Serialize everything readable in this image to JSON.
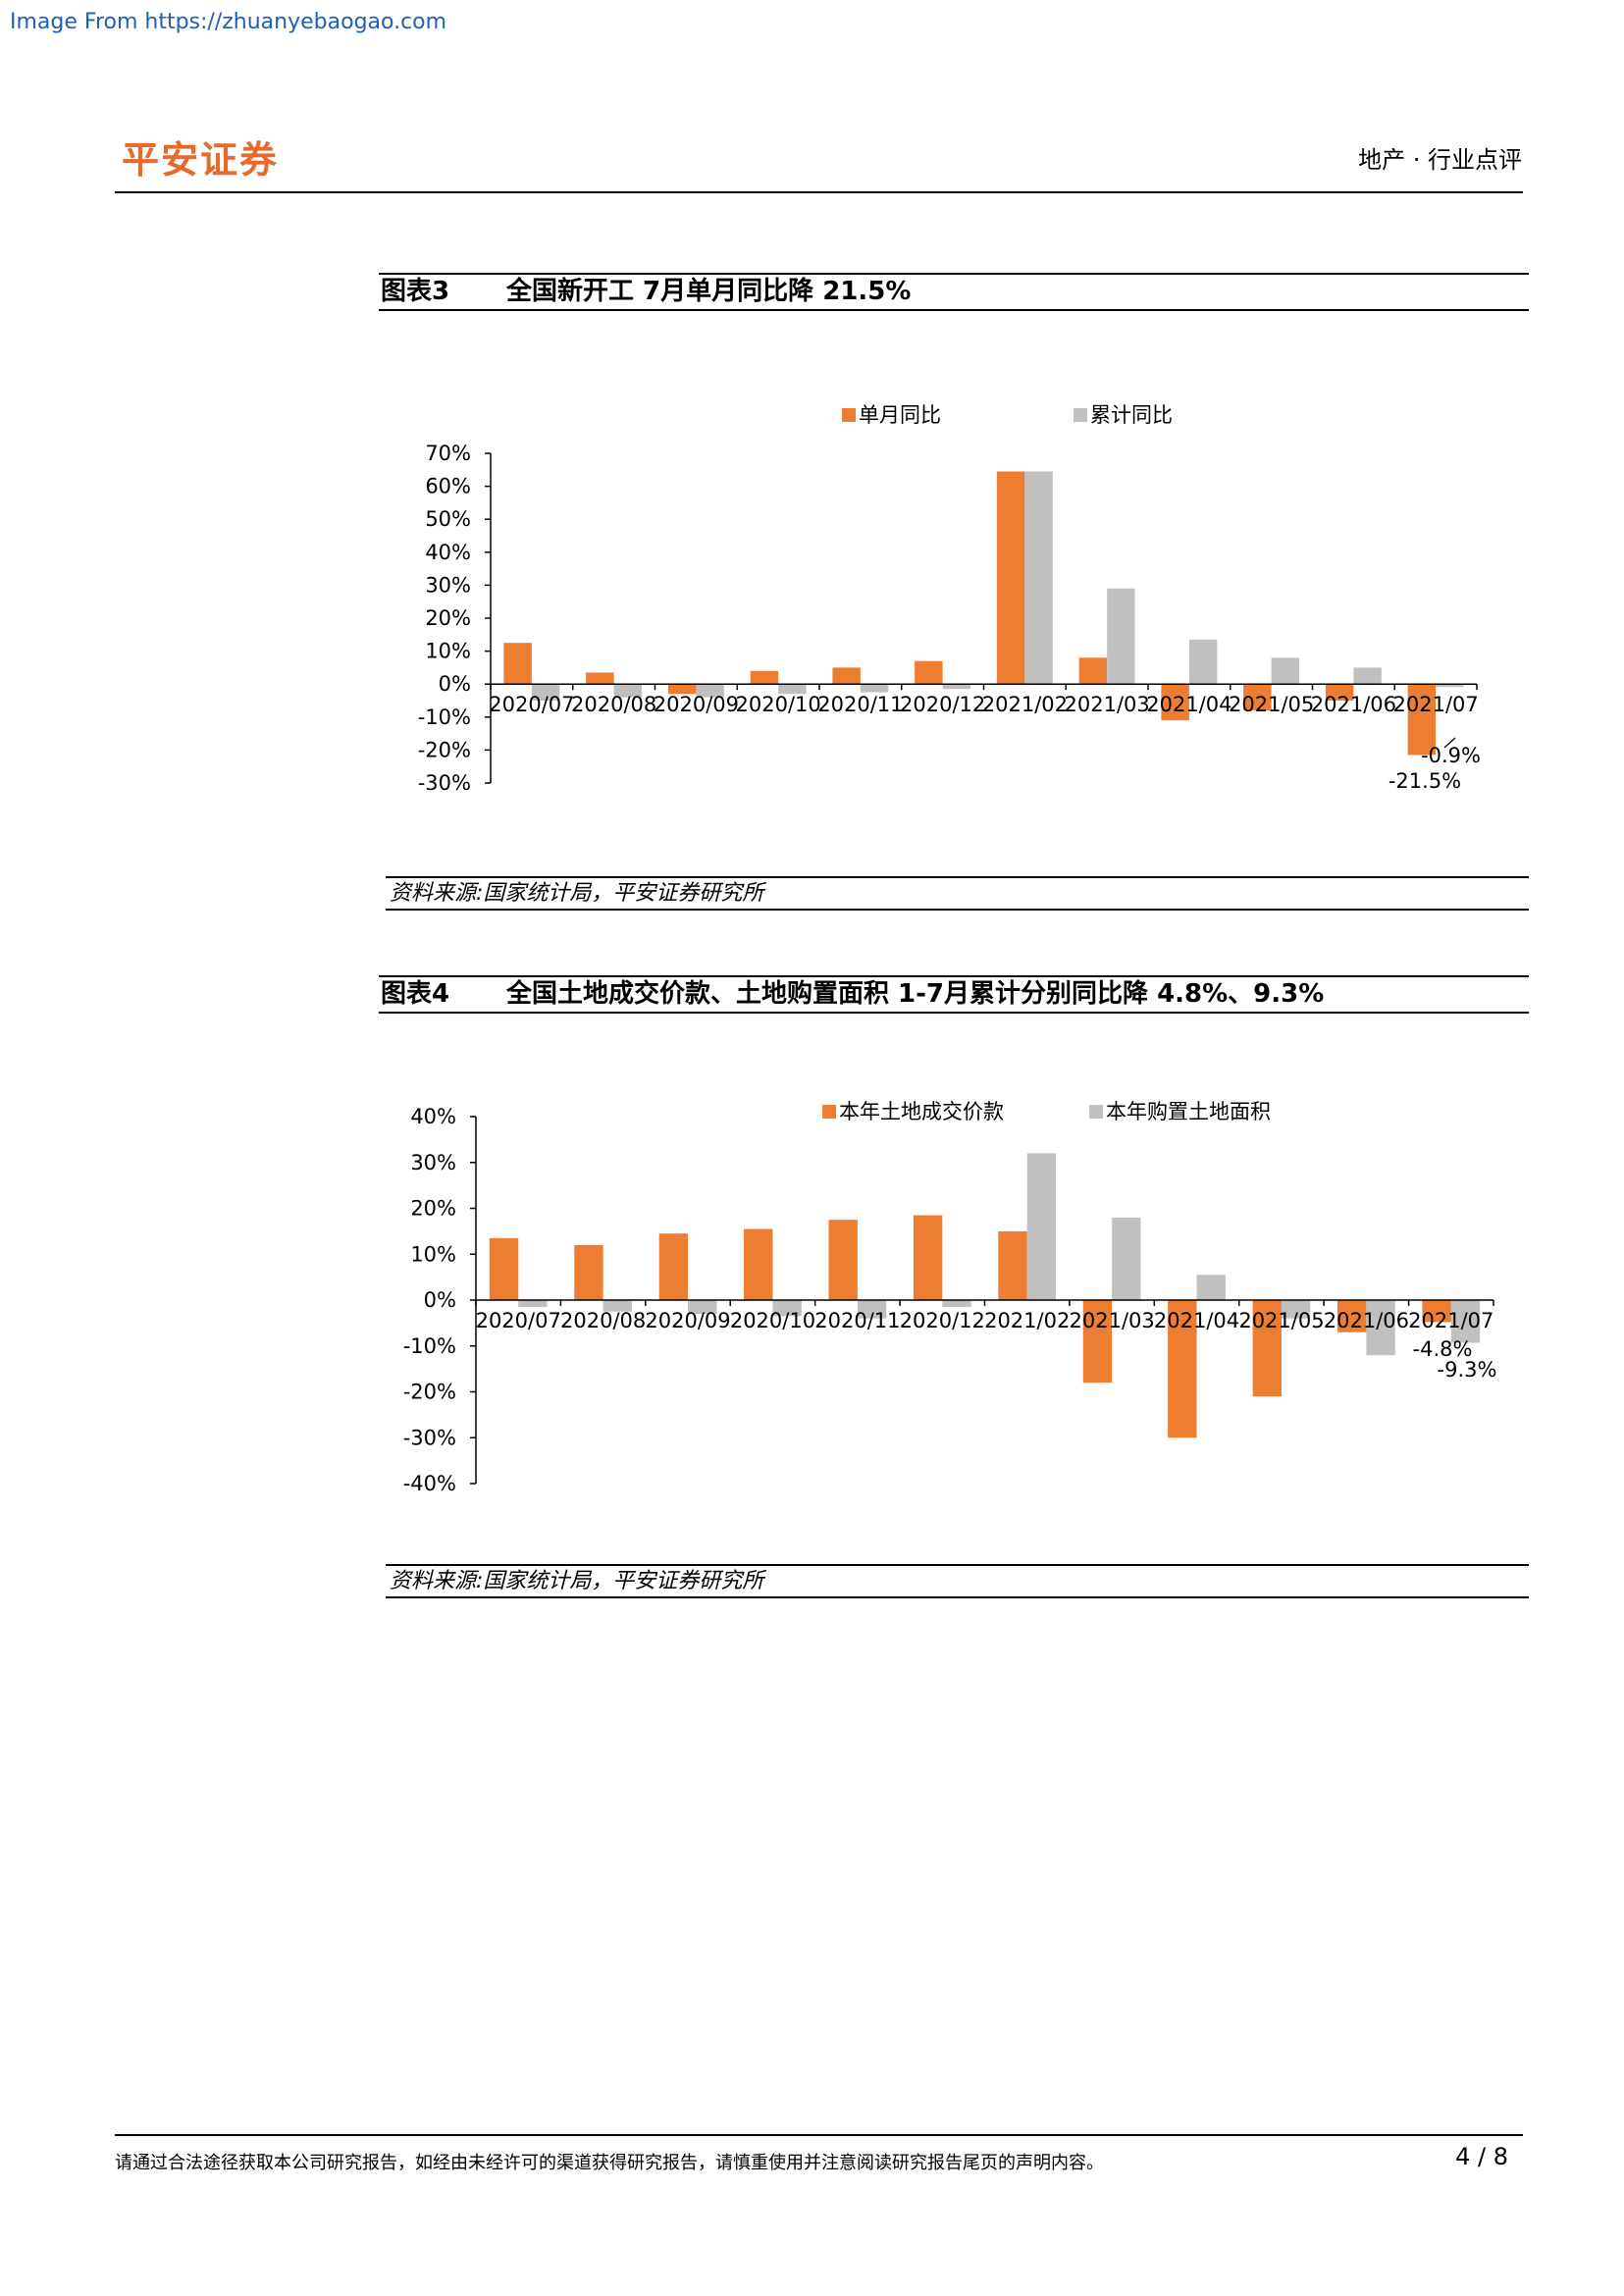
{
  "source_link": "Image From https://zhuanyebaogao.com",
  "header": {
    "brand": "平安证券",
    "section": "地产 · 行业点评"
  },
  "figures": [
    {
      "number": "图表3",
      "title": "全国新开工 7月单月同比降 21.5%",
      "source": "资料来源:国家统计局，平安证券研究所"
    },
    {
      "number": "图表4",
      "title": "全国土地成交价款、土地购置面积 1-7月累计分别同比降 4.8%、9.3%",
      "source": "资料来源:国家统计局，平安证券研究所"
    }
  ],
  "footer": {
    "disclaimer": "请通过合法途径获取本公司研究报告，如经由未经许可的渠道获得研究报告，请慎重使用并注意阅读研究报告尾页的声明内容。",
    "page": "4 / 8"
  },
  "colors": {
    "orange": "#ed7d31",
    "gray": "#c0c0c0",
    "brand": "#e8692b"
  },
  "chart_data": [
    {
      "type": "bar",
      "categories": [
        "2020/07",
        "2020/08",
        "2020/09",
        "2020/10",
        "2020/11",
        "2020/12",
        "2021/02",
        "2021/03",
        "2021/04",
        "2021/05",
        "2021/06",
        "2021/07"
      ],
      "series": [
        {
          "name": "单月同比",
          "color": "#ed7d31",
          "values": [
            12.5,
            3.5,
            -3.0,
            4.0,
            5.0,
            7.0,
            64.5,
            8.0,
            -11.0,
            -8.0,
            -5.0,
            -21.5
          ]
        },
        {
          "name": "累计同比",
          "color": "#c0c0c0",
          "values": [
            -5.0,
            -4.0,
            -4.0,
            -3.0,
            -2.5,
            -1.5,
            64.5,
            29.0,
            13.5,
            8.0,
            5.0,
            -0.9
          ]
        }
      ],
      "ylim": [
        -30,
        70
      ],
      "yticks": [
        "70%",
        "60%",
        "50%",
        "40%",
        "30%",
        "20%",
        "10%",
        "0%",
        "-10%",
        "-20%",
        "-30%"
      ],
      "legend": "top",
      "annotations": [
        "-0.9%",
        "-21.5%"
      ]
    },
    {
      "type": "bar",
      "categories": [
        "2020/07",
        "2020/08",
        "2020/09",
        "2020/10",
        "2020/11",
        "2020/12",
        "2021/02",
        "2021/03",
        "2021/04",
        "2021/05",
        "2021/06",
        "2021/07"
      ],
      "series": [
        {
          "name": "本年土地成交价款",
          "color": "#ed7d31",
          "values": [
            13.5,
            12.0,
            14.5,
            15.5,
            17.5,
            18.5,
            15.0,
            -18.0,
            -30.0,
            -21.0,
            -7.0,
            -4.8
          ]
        },
        {
          "name": "本年购置土地面积",
          "color": "#c0c0c0",
          "values": [
            -1.5,
            -2.5,
            -3.0,
            -3.5,
            -4.0,
            -1.5,
            32.0,
            18.0,
            5.5,
            -4.0,
            -12.0,
            -9.3
          ]
        }
      ],
      "ylim": [
        -40,
        40
      ],
      "yticks": [
        "40%",
        "30%",
        "20%",
        "10%",
        "0%",
        "-10%",
        "-20%",
        "-30%",
        "-40%"
      ],
      "legend": "top",
      "annotations": [
        "-4.8%",
        "-9.3%"
      ]
    }
  ]
}
